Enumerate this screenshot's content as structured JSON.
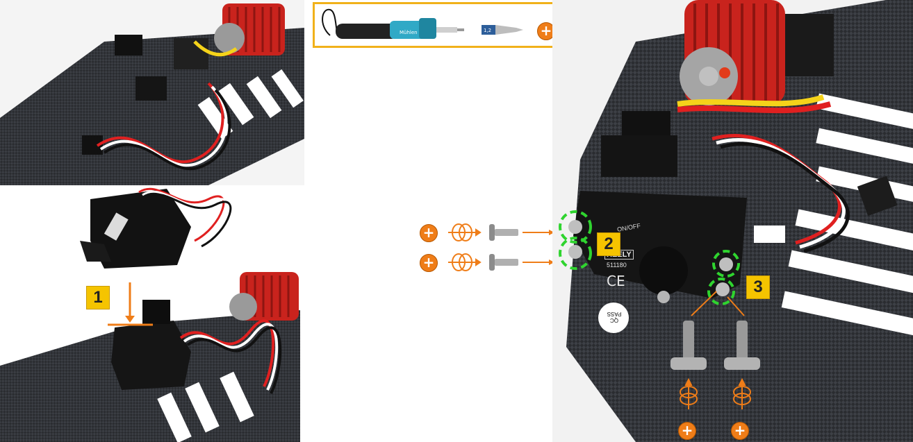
{
  "steps": [
    {
      "number": "1"
    },
    {
      "number": "2"
    },
    {
      "number": "3"
    }
  ],
  "tool": {
    "bit_size": "1,2"
  },
  "servo": {
    "brand": "REELY",
    "model": "511180",
    "mark": "CE",
    "sticker": "ON/OFF"
  },
  "qc_sticker": {
    "line1": "QC",
    "line2": "PASS"
  },
  "screw_icon": "phillips-plus-icon",
  "rotation_icon": "clockwise-rotation-icon",
  "colors": {
    "accent_orange": "#ef7d18",
    "step_badge_yellow": "#f5c400",
    "highlight_green": "#2fd42f",
    "tool_box_border": "#f1b11a"
  }
}
